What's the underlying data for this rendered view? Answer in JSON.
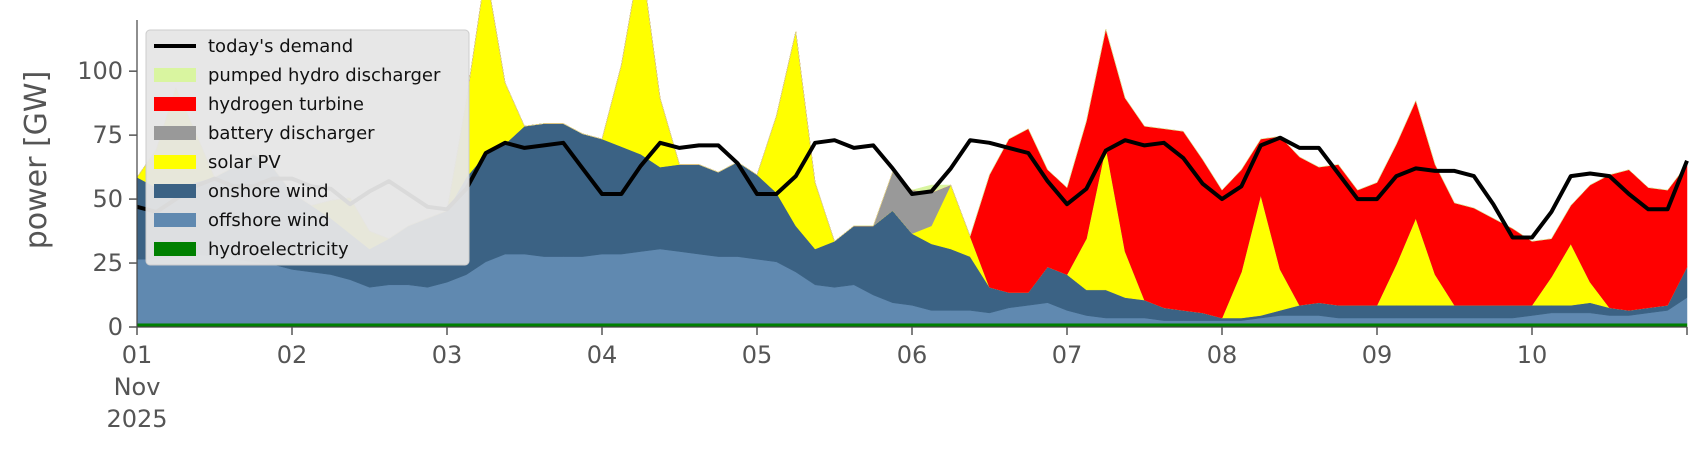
{
  "chart_data": {
    "type": "area",
    "ylabel": "power [GW]",
    "xlabel": "",
    "ylim": [
      0,
      120
    ],
    "xlim": [
      0,
      10
    ],
    "grid": false,
    "legend_position": "top-left",
    "x_ticks": [
      {
        "x": 0,
        "label": "01"
      },
      {
        "x": 1,
        "label": "02"
      },
      {
        "x": 2,
        "label": "03"
      },
      {
        "x": 3,
        "label": "04"
      },
      {
        "x": 4,
        "label": "05"
      },
      {
        "x": 5,
        "label": "06"
      },
      {
        "x": 6,
        "label": "07"
      },
      {
        "x": 7,
        "label": "08"
      },
      {
        "x": 8,
        "label": "09"
      },
      {
        "x": 9,
        "label": "10"
      }
    ],
    "x_sublabels": [
      "Nov",
      "2025"
    ],
    "y_ticks": [
      0,
      25,
      50,
      75,
      100
    ],
    "x_days": [
      0,
      0.125,
      0.25,
      0.375,
      0.5,
      0.625,
      0.75,
      0.875,
      1,
      1.125,
      1.25,
      1.375,
      1.5,
      1.625,
      1.75,
      1.875,
      2,
      2.125,
      2.25,
      2.375,
      2.5,
      2.625,
      2.75,
      2.875,
      3,
      3.125,
      3.25,
      3.375,
      3.5,
      3.625,
      3.75,
      3.875,
      4,
      4.125,
      4.25,
      4.375,
      4.5,
      4.625,
      4.75,
      4.875,
      5,
      5.125,
      5.25,
      5.375,
      5.5,
      5.625,
      5.75,
      5.875,
      6,
      6.125,
      6.25,
      6.375,
      6.5,
      6.625,
      6.75,
      6.875,
      7,
      7.125,
      7.25,
      7.375,
      7.5,
      7.625,
      7.75,
      7.875,
      8,
      8.125,
      8.25,
      8.375,
      8.5,
      8.625,
      8.75,
      8.875,
      9,
      9.125,
      9.25,
      9.375,
      9.5,
      9.625,
      9.75,
      9.875,
      10
    ],
    "series": [
      {
        "name": "hydroelectricity",
        "color": "#008000",
        "values": [
          1.5,
          1.5,
          1.5,
          1.5,
          1.5,
          1.5,
          1.5,
          1.5,
          1.5,
          1.5,
          1.5,
          1.5,
          1.5,
          1.5,
          1.5,
          1.5,
          1.5,
          1.5,
          1.5,
          1.5,
          1.5,
          1.5,
          1.5,
          1.5,
          1.5,
          1.5,
          1.5,
          1.5,
          1.5,
          1.5,
          1.5,
          1.5,
          1.5,
          1.5,
          1.5,
          1.5,
          1.5,
          1.5,
          1.5,
          1.5,
          1.5,
          1.5,
          1.5,
          1.5,
          1.5,
          1.5,
          1.5,
          1.5,
          1.5,
          1.5,
          1.5,
          1.5,
          1.5,
          1.5,
          1.5,
          1.5,
          1.5,
          1.5,
          1.5,
          1.5,
          1.5,
          1.5,
          1.5,
          1.5,
          1.5,
          1.5,
          1.5,
          1.5,
          1.5,
          1.5,
          1.5,
          1.5,
          1.5,
          1.5,
          1.5,
          1.5,
          1.5,
          1.5,
          1.5,
          1.5,
          1.5
        ]
      },
      {
        "name": "offshore wind",
        "color": "#6089b0",
        "values": [
          25,
          25,
          26,
          27,
          26,
          25,
          24,
          23,
          21,
          20,
          19,
          17,
          14,
          15,
          15,
          14,
          16,
          19,
          24,
          27,
          27,
          26,
          26,
          26,
          27,
          27,
          28,
          29,
          28,
          27,
          26,
          26,
          25,
          24,
          20,
          15,
          14,
          15,
          11,
          8,
          7,
          5,
          5,
          5,
          4,
          6,
          7,
          8,
          5,
          3,
          2,
          2,
          2,
          1,
          1,
          1,
          1,
          1,
          2,
          3,
          3,
          3,
          2,
          2,
          2,
          2,
          2,
          2,
          2,
          2,
          2,
          2,
          3,
          4,
          4,
          4,
          3,
          3,
          4,
          5,
          10
        ]
      },
      {
        "name": "onshore wind",
        "color": "#3b6284",
        "values": [
          32,
          28,
          26,
          28,
          31,
          36,
          42,
          38,
          30,
          26,
          22,
          18,
          15,
          18,
          23,
          27,
          28,
          38,
          42,
          43,
          50,
          52,
          52,
          48,
          45,
          42,
          38,
          32,
          34,
          35,
          33,
          37,
          33,
          27,
          18,
          14,
          18,
          23,
          27,
          36,
          28,
          26,
          24,
          21,
          10,
          6,
          5,
          14,
          14,
          10,
          11,
          8,
          7,
          5,
          4,
          3,
          1,
          1,
          1,
          2,
          4,
          5,
          5,
          5,
          5,
          5,
          5,
          5,
          5,
          5,
          5,
          5,
          4,
          3,
          3,
          4,
          3,
          2,
          2,
          2,
          12
        ]
      },
      {
        "name": "solar PV",
        "color": "#ffff00",
        "values": [
          0,
          15,
          40,
          20,
          0,
          0,
          0,
          0,
          0,
          0,
          7,
          14,
          7,
          0,
          0,
          0,
          0,
          30,
          72,
          24,
          0,
          0,
          0,
          0,
          0,
          32,
          78,
          27,
          0,
          0,
          0,
          0,
          0,
          30,
          76,
          26,
          0,
          0,
          0,
          0,
          0,
          7,
          25,
          8,
          0,
          0,
          0,
          0,
          0,
          20,
          56,
          18,
          0,
          0,
          0,
          0,
          0,
          18,
          47,
          16,
          0,
          0,
          0,
          0,
          0,
          16,
          34,
          12,
          0,
          0,
          0,
          0,
          0,
          11,
          24,
          8,
          0,
          0,
          0,
          0,
          0
        ]
      },
      {
        "name": "battery discharger",
        "color": "#999999",
        "values": [
          0,
          0,
          0,
          0,
          0,
          0,
          0,
          0,
          0,
          0,
          0,
          0,
          0,
          0,
          0,
          0,
          0,
          0,
          0,
          0,
          0,
          0,
          0,
          0,
          0,
          0,
          0,
          0,
          0,
          0,
          0,
          0,
          0,
          0,
          0,
          0,
          0,
          0,
          0,
          15,
          17,
          13,
          0,
          0,
          0,
          0,
          0,
          0,
          0,
          0,
          0,
          0,
          0,
          0,
          0,
          0,
          0,
          0,
          0,
          0,
          0,
          0,
          0,
          0,
          0,
          0,
          0,
          0,
          0,
          0,
          0,
          0,
          0,
          0,
          0,
          0,
          0,
          0,
          0,
          0,
          0
        ]
      },
      {
        "name": "hydrogen turbine",
        "color": "#ff0000",
        "values": [
          0,
          0,
          0,
          0,
          0,
          0,
          0,
          0,
          0,
          0,
          0,
          0,
          0,
          0,
          0,
          0,
          0,
          0,
          0,
          0,
          0,
          0,
          0,
          0,
          0,
          0,
          0,
          0,
          0,
          0,
          0,
          0,
          0,
          0,
          0,
          0,
          0,
          0,
          0,
          0,
          0,
          0,
          0,
          0,
          44,
          60,
          64,
          38,
          34,
          46,
          46,
          60,
          68,
          70,
          70,
          60,
          50,
          40,
          22,
          52,
          58,
          53,
          55,
          45,
          48,
          47,
          46,
          43,
          40,
          38,
          34,
          30,
          25,
          15,
          15,
          38,
          52,
          55,
          47,
          45,
          40
        ]
      },
      {
        "name": "pumped hydro discharger",
        "color": "#d9f5a0",
        "values": [
          0,
          0,
          0,
          0,
          0,
          0,
          0,
          0,
          0,
          0,
          0,
          0,
          0,
          0,
          0,
          0,
          0,
          0,
          0,
          0,
          0,
          0,
          0,
          0,
          0,
          0,
          0,
          0,
          0,
          0,
          0,
          0,
          0,
          0,
          0,
          0,
          0,
          0,
          0,
          0,
          0,
          3,
          0,
          0,
          0,
          0,
          0,
          0,
          0,
          0,
          0,
          0,
          0,
          0,
          0,
          0,
          0,
          0,
          0,
          0,
          0,
          0,
          0,
          0,
          0,
          0,
          0,
          0,
          0,
          0,
          0,
          0,
          0,
          0,
          0,
          0,
          0,
          0,
          0,
          0,
          0
        ]
      }
    ],
    "demand": {
      "name": "today's demand",
      "color": "#000000",
      "values": [
        47,
        45,
        50,
        55,
        58,
        55,
        55,
        58,
        58,
        55,
        54,
        48,
        53,
        57,
        52,
        47,
        46,
        54,
        68,
        72,
        70,
        71,
        72,
        62,
        52,
        52,
        63,
        72,
        70,
        71,
        71,
        64,
        52,
        52,
        59,
        72,
        73,
        70,
        71,
        62,
        52,
        53,
        62,
        73,
        72,
        70,
        68,
        57,
        48,
        54,
        69,
        73,
        71,
        72,
        66,
        56,
        50,
        55,
        71,
        74,
        70,
        70,
        60,
        50,
        50,
        59,
        62,
        61,
        61,
        59,
        48,
        35,
        35,
        45,
        59,
        60,
        59,
        52,
        46,
        46,
        65
      ]
    }
  },
  "legend": [
    {
      "label": "today's demand",
      "color": "#000000",
      "kind": "line"
    },
    {
      "label": "pumped hydro discharger",
      "color": "#d9f5a0",
      "kind": "patch"
    },
    {
      "label": "hydrogen turbine",
      "color": "#ff0000",
      "kind": "patch"
    },
    {
      "label": "battery discharger",
      "color": "#999999",
      "kind": "patch"
    },
    {
      "label": "solar PV",
      "color": "#ffff00",
      "kind": "patch"
    },
    {
      "label": "onshore wind",
      "color": "#3b6284",
      "kind": "patch"
    },
    {
      "label": "offshore wind",
      "color": "#6089b0",
      "kind": "patch"
    },
    {
      "label": "hydroelectricity",
      "color": "#008000",
      "kind": "patch"
    }
  ]
}
